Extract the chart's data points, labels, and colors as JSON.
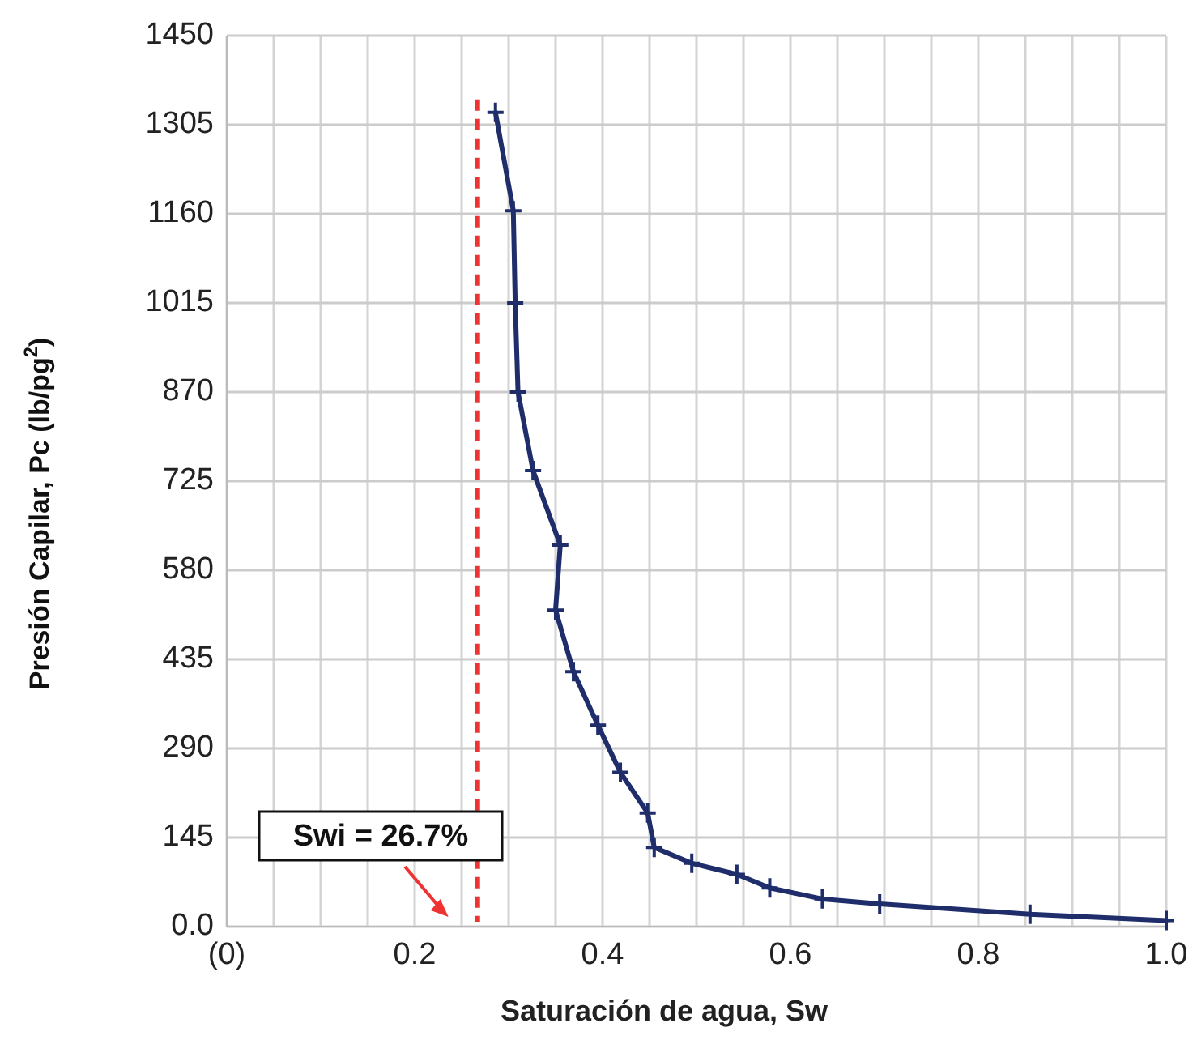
{
  "chart_data": {
    "type": "line",
    "xlabel": "Saturación de agua, Sw",
    "ylabel": "Presión Capilar, Pc (lb/pg$^{2}$)",
    "x": [
      0.286,
      0.305,
      0.307,
      0.31,
      0.326,
      0.355,
      0.35,
      0.369,
      0.395,
      0.419,
      0.448,
      0.455,
      0.495,
      0.543,
      0.578,
      0.634,
      0.695,
      0.855,
      1.0
    ],
    "series": [
      {
        "color": "#1f2d6b",
        "values": [
          1325,
          1165,
          1015,
          870,
          742,
          621,
          515,
          415,
          328,
          251,
          185,
          129,
          103,
          85,
          63,
          45,
          37,
          20,
          10
        ]
      }
    ],
    "xlim": [
      0,
      1.0
    ],
    "xticks": [
      {
        "value": 0,
        "label": "(0)"
      },
      {
        "value": 0.05,
        "label": null
      },
      {
        "value": 0.1,
        "label": null
      },
      {
        "value": 0.15,
        "label": null
      },
      0.2,
      {
        "value": 0.25,
        "label": null
      },
      {
        "value": 0.3,
        "label": null
      },
      {
        "value": 0.35,
        "label": null
      },
      0.4,
      {
        "value": 0.45,
        "label": null
      },
      {
        "value": 0.5,
        "label": null
      },
      {
        "value": 0.55,
        "label": null
      },
      0.6,
      {
        "value": 0.65,
        "label": null
      },
      {
        "value": 0.7,
        "label": null
      },
      {
        "value": 0.75,
        "label": null
      },
      0.8,
      {
        "value": 0.85,
        "label": null
      },
      {
        "value": 0.9,
        "label": null
      },
      {
        "value": 0.95,
        "label": null
      },
      {
        "value": 1.0,
        "label": "1.0"
      }
    ],
    "ylim": [
      0,
      1450
    ],
    "yticks": [
      {
        "value": 0,
        "label": "0.0"
      },
      145,
      290,
      435,
      580,
      725,
      870,
      1015,
      1160,
      1305,
      1450
    ],
    "grid": true,
    "marker": "cross",
    "line_style": "solid",
    "ref_lines": [
      {
        "axis": "x",
        "value": 0.267,
        "color": "#ee3333",
        "line_style": "dashed"
      }
    ],
    "annotations": [
      {
        "text": "Swi = 26.7%",
        "x": 0.267,
        "y": 0
      }
    ]
  }
}
